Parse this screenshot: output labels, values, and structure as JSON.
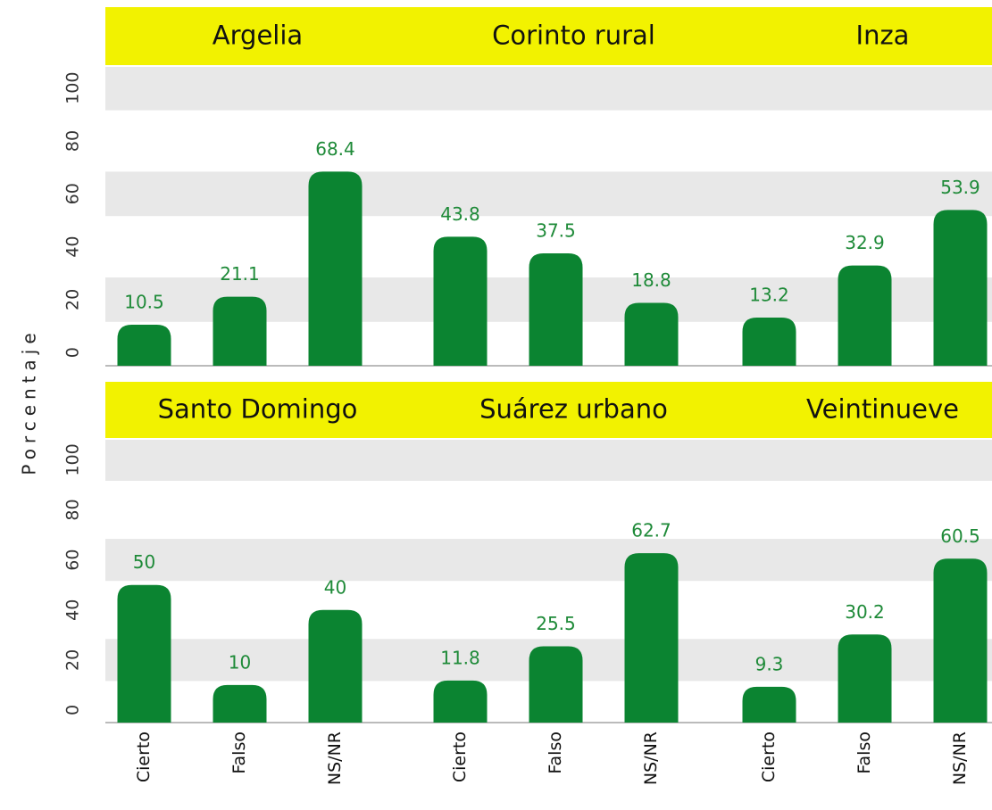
{
  "chart_data": {
    "type": "bar",
    "y_label": "Porcentaje",
    "categories": [
      "Cierto",
      "Falso",
      "NS/NR"
    ],
    "ylim": [
      -5,
      108
    ],
    "yticks": [
      0,
      20,
      40,
      60,
      80,
      100
    ],
    "color": "#0b8431",
    "panels": [
      {
        "title": "Argelia",
        "values": [
          10.5,
          21.1,
          68.4
        ]
      },
      {
        "title": "Corinto rural",
        "values": [
          43.8,
          37.5,
          18.8
        ]
      },
      {
        "title": "Inza",
        "values": [
          13.2,
          32.9,
          53.9
        ]
      },
      {
        "title": "Santo Domingo",
        "values": [
          50,
          10,
          40
        ]
      },
      {
        "title": "Suárez urbano",
        "values": [
          11.8,
          25.5,
          62.7
        ]
      },
      {
        "title": "Veintinueve",
        "values": [
          9.3,
          30.2,
          60.5
        ]
      }
    ]
  }
}
